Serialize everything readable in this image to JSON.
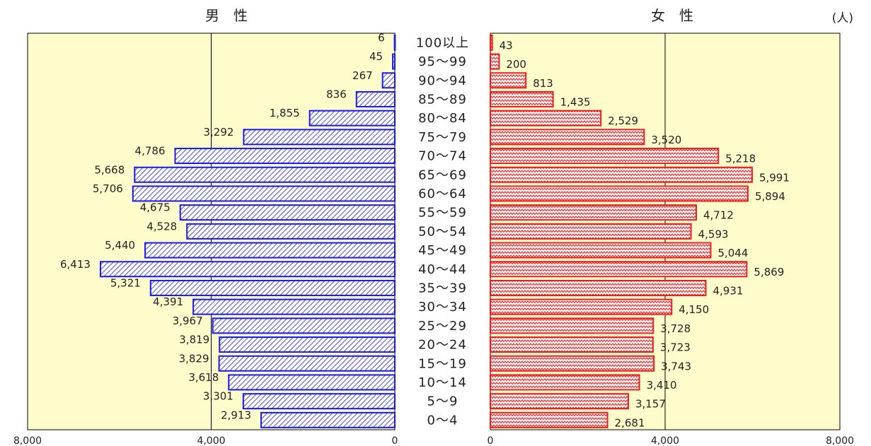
{
  "chart_data": {
    "type": "bar",
    "left_title": "男　性",
    "right_title": "女　性",
    "unit": "(人)",
    "categories": [
      "100以上",
      "95〜99",
      "90〜94",
      "85〜89",
      "80〜84",
      "75〜79",
      "70〜74",
      "65〜69",
      "60〜64",
      "55〜59",
      "50〜54",
      "45〜49",
      "40〜44",
      "35〜39",
      "30〜34",
      "25〜29",
      "20〜24",
      "15〜19",
      "10〜14",
      "5〜9",
      "0〜4"
    ],
    "series": [
      {
        "name": "男　性",
        "values": [
          6,
          45,
          267,
          836,
          1855,
          3292,
          4786,
          5668,
          5706,
          4675,
          4528,
          5440,
          6413,
          5321,
          4391,
          3967,
          3819,
          3829,
          3618,
          3301,
          2913
        ],
        "labels": [
          "6",
          "45",
          "267",
          "836",
          "1,855",
          "3,292",
          "4,786",
          "5,668",
          "5,706",
          "4,675",
          "4,528",
          "5,440",
          "6,413",
          "5,321",
          "4,391",
          "3,967",
          "3,819",
          "3,829",
          "3,618",
          "3,301",
          "2,913"
        ],
        "color": "#1a1ae6"
      },
      {
        "name": "女　性",
        "values": [
          43,
          200,
          813,
          1435,
          2529,
          3520,
          5218,
          5991,
          5894,
          4712,
          4593,
          5044,
          5869,
          4931,
          4150,
          3728,
          3723,
          3743,
          3410,
          3157,
          2681
        ],
        "labels": [
          "43",
          "200",
          "813",
          "1,435",
          "2,529",
          "3,520",
          "5,218",
          "5,991",
          "5,894",
          "4,712",
          "4,593",
          "5,044",
          "5,869",
          "4,931",
          "4,150",
          "3,728",
          "3,723",
          "3,743",
          "3,410",
          "3,157",
          "2,681"
        ],
        "color": "#ee1c1c"
      }
    ],
    "xlim": [
      0,
      8000
    ],
    "left_ticks": [
      {
        "value": 8000,
        "label": "8,000"
      },
      {
        "value": 4000,
        "label": "4,000"
      },
      {
        "value": 0,
        "label": "0"
      }
    ],
    "right_ticks": [
      {
        "value": 0,
        "label": "0"
      },
      {
        "value": 4000,
        "label": "4,000"
      },
      {
        "value": 8000,
        "label": "8,000"
      }
    ],
    "gridlines": [
      4000
    ],
    "plot_background": "#fffccc"
  }
}
